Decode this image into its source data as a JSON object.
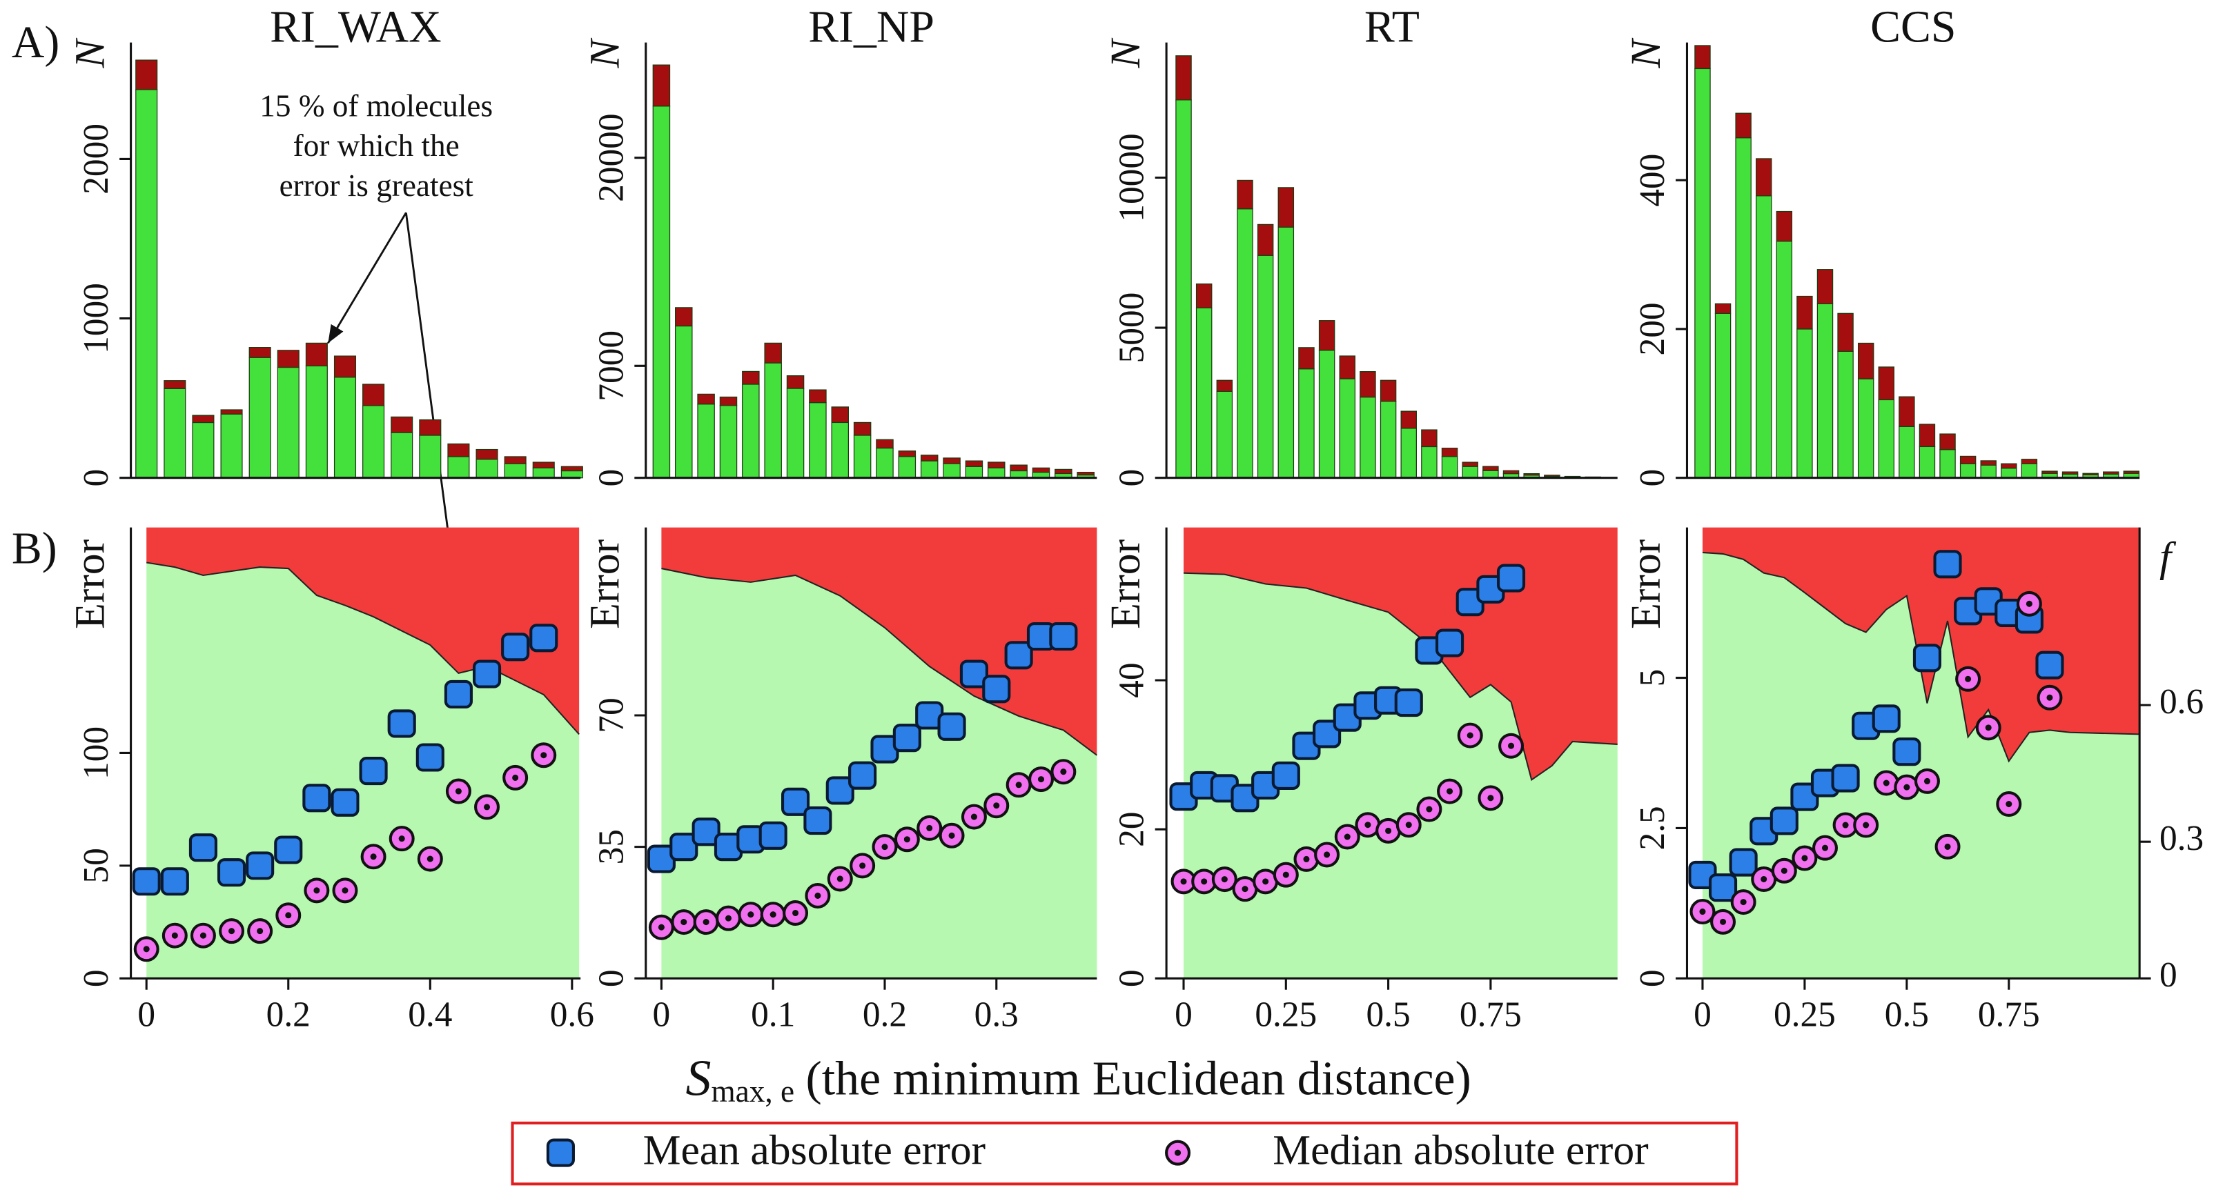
{
  "panel_labels": [
    "A)",
    "B)"
  ],
  "xlabel": {
    "symbol": "S",
    "subscript": "max, e",
    "text": "(the minimum Euclidean distance)"
  },
  "series_style": [
    {
      "name": "Mean absolute error",
      "color": "#2b7fe6",
      "marker": "square"
    },
    {
      "name": "Median absolute error",
      "color": "#f070f0",
      "marker": "ring"
    }
  ],
  "legend_border": "#e02020",
  "chart_data": [
    {
      "type": "histogram",
      "title": "RI_WAX",
      "ylabel": "N",
      "annotation": [
        "15 % of molecules",
        "for which the",
        "error is greatest"
      ],
      "x": [
        0,
        0.04,
        0.08,
        0.12,
        0.16,
        0.2,
        0.24,
        0.28,
        0.32,
        0.36,
        0.4,
        0.44,
        0.48,
        0.52,
        0.56,
        0.6
      ],
      "series": [
        {
          "color": "#44e03c",
          "values": [
            2435,
            560,
            347,
            400,
            755,
            693,
            702,
            631,
            453,
            284,
            267,
            133,
            116,
            89,
            62,
            44
          ]
        },
        {
          "color": "#a50e0e",
          "values": [
            185,
            50,
            45,
            27,
            63,
            107,
            143,
            133,
            134,
            98,
            97,
            80,
            62,
            44,
            36,
            27
          ]
        }
      ],
      "xlim": [
        -0.022,
        0.612
      ],
      "ylim": [
        0,
        2730
      ],
      "yticks": [
        0,
        1000,
        2000
      ]
    },
    {
      "type": "histogram",
      "title": "RI_NP",
      "ylabel": "N",
      "x": [
        0,
        0.02,
        0.04,
        0.06,
        0.08,
        0.1,
        0.12,
        0.14,
        0.16,
        0.18,
        0.2,
        0.22,
        0.24,
        0.26,
        0.28,
        0.3,
        0.32,
        0.34,
        0.36,
        0.38
      ],
      "series": [
        {
          "color": "#44e03c",
          "values": [
            23230,
            9490,
            4610,
            4520,
            5850,
            7180,
            5590,
            4700,
            3460,
            2660,
            1860,
            1330,
            1060,
            890,
            710,
            620,
            440,
            350,
            270,
            180
          ]
        },
        {
          "color": "#a50e0e",
          "values": [
            2570,
            1150,
            620,
            530,
            800,
            1240,
            790,
            800,
            970,
            800,
            530,
            350,
            360,
            350,
            350,
            360,
            360,
            270,
            260,
            170
          ]
        }
      ],
      "xlim": [
        -0.014,
        0.39
      ],
      "ylim": [
        0,
        27200
      ],
      "yticks": [
        0,
        7000,
        20000
      ]
    },
    {
      "type": "histogram",
      "title": "RT",
      "ylabel": "N",
      "x": [
        0,
        0.05,
        0.1,
        0.15,
        0.2,
        0.25,
        0.3,
        0.35,
        0.4,
        0.45,
        0.5,
        0.55,
        0.6,
        0.65,
        0.7,
        0.75,
        0.8,
        0.85,
        0.9,
        0.95,
        1.0
      ],
      "series": [
        {
          "color": "#44e03c",
          "values": [
            12590,
            5660,
            2880,
            8960,
            7410,
            8350,
            3630,
            4250,
            3300,
            2690,
            2550,
            1650,
            1040,
            710,
            380,
            240,
            140,
            90,
            50,
            30,
            20
          ]
        },
        {
          "color": "#a50e0e",
          "values": [
            1470,
            800,
            370,
            950,
            1030,
            1320,
            710,
            990,
            760,
            850,
            700,
            570,
            560,
            280,
            140,
            140,
            100,
            50,
            40,
            20,
            10
          ]
        }
      ],
      "xlim": [
        -0.042,
        1.06
      ],
      "ylim": [
        0,
        14500
      ],
      "yticks": [
        0,
        5000,
        10000
      ]
    },
    {
      "type": "histogram",
      "title": "CCS",
      "ylabel": "N",
      "x": [
        0,
        0.05,
        0.1,
        0.15,
        0.2,
        0.25,
        0.3,
        0.35,
        0.4,
        0.45,
        0.5,
        0.55,
        0.6,
        0.65,
        0.7,
        0.75,
        0.8,
        0.85,
        0.9,
        0.95,
        1.0,
        1.05
      ],
      "series": [
        {
          "color": "#44e03c",
          "values": [
            550,
            221,
            457,
            379,
            318,
            200,
            234,
            170,
            133,
            105,
            69,
            42,
            38,
            19,
            17,
            13,
            19,
            6,
            5,
            4,
            5,
            6
          ]
        },
        {
          "color": "#a50e0e",
          "values": [
            31,
            13,
            33,
            50,
            40,
            44,
            46,
            51,
            48,
            44,
            40,
            30,
            21,
            10,
            6,
            6,
            6,
            3,
            3,
            2,
            3,
            3
          ]
        }
      ],
      "xlim": [
        -0.038,
        1.07
      ],
      "ylim": [
        0,
        585
      ],
      "yticks": [
        0,
        200,
        400
      ]
    },
    {
      "type": "scatter",
      "ylabel": "Error",
      "x": [
        0,
        0.04,
        0.08,
        0.12,
        0.16,
        0.2,
        0.24,
        0.28,
        0.32,
        0.36,
        0.4,
        0.44,
        0.48,
        0.52,
        0.56
      ],
      "series": [
        {
          "values": [
            43,
            43,
            58,
            47,
            50,
            57,
            80,
            78,
            92,
            113,
            98,
            126,
            135,
            147,
            151
          ]
        },
        {
          "values": [
            13,
            19,
            19,
            21,
            21,
            28,
            39,
            39,
            54,
            62,
            53,
            83,
            76,
            89,
            99
          ]
        }
      ],
      "area": {
        "x": [
          0,
          0.04,
          0.08,
          0.12,
          0.16,
          0.2,
          0.24,
          0.28,
          0.32,
          0.36,
          0.4,
          0.44,
          0.48,
          0.52,
          0.56,
          0.61
        ],
        "values": [
          0.913,
          0.903,
          0.885,
          0.894,
          0.903,
          0.9,
          0.841,
          0.819,
          0.794,
          0.763,
          0.732,
          0.67,
          0.685,
          0.654,
          0.623,
          0.536
        ],
        "axis": "y2",
        "fill_below": "#b6f8b0",
        "fill_above": "#f23c3c"
      },
      "xlim": [
        -0.022,
        0.612
      ],
      "xticks": [
        0,
        0.2,
        0.4,
        0.6
      ],
      "ylim": [
        0,
        200
      ],
      "yticks": [
        0,
        50,
        100
      ],
      "y2lim": [
        0,
        0.99
      ]
    },
    {
      "type": "scatter",
      "ylabel": "Error",
      "x": [
        0,
        0.02,
        0.04,
        0.06,
        0.08,
        0.1,
        0.12,
        0.14,
        0.16,
        0.18,
        0.2,
        0.22,
        0.24,
        0.26,
        0.28,
        0.3,
        0.32,
        0.34,
        0.36
      ],
      "series": [
        {
          "values": [
            31.8,
            35,
            39,
            35,
            37,
            38,
            47,
            42,
            50,
            54,
            61,
            64,
            70,
            67,
            81,
            77,
            86,
            91,
            91
          ]
        },
        {
          "values": [
            13.6,
            15,
            15,
            16,
            17,
            17,
            17.4,
            22,
            26.5,
            30,
            35,
            37,
            40,
            38,
            43,
            46,
            51.5,
            53,
            55
          ]
        }
      ],
      "area": {
        "x": [
          0,
          0.04,
          0.08,
          0.12,
          0.16,
          0.2,
          0.24,
          0.28,
          0.32,
          0.36,
          0.39
        ],
        "values": [
          0.9,
          0.88,
          0.87,
          0.885,
          0.84,
          0.77,
          0.685,
          0.62,
          0.576,
          0.545,
          0.49
        ],
        "axis": "y2",
        "fill_below": "#b6f8b0",
        "fill_above": "#f23c3c"
      },
      "xlim": [
        -0.014,
        0.39
      ],
      "xticks": [
        0,
        0.1,
        0.2,
        0.3
      ],
      "ylim": [
        0,
        120
      ],
      "yticks": [
        0,
        35,
        70
      ],
      "y2lim": [
        0,
        0.99
      ]
    },
    {
      "type": "scatter",
      "ylabel": "Error",
      "x": [
        0,
        0.05,
        0.1,
        0.15,
        0.2,
        0.25,
        0.3,
        0.35,
        0.4,
        0.45,
        0.5,
        0.55,
        0.6,
        0.65,
        0.7,
        0.75,
        0.8
      ],
      "series": [
        {
          "values": [
            24.4,
            25.9,
            25.5,
            24.2,
            25.9,
            27.2,
            31.2,
            32.8,
            35,
            36.6,
            37.3,
            37,
            44,
            45,
            50.5,
            52.2,
            53.7
          ]
        },
        {
          "values": [
            13,
            13,
            13.3,
            12,
            13,
            13.9,
            16,
            16.6,
            19,
            20.6,
            19.8,
            20.6,
            22.7,
            25.1,
            32.6,
            24.2,
            31.2
          ]
        }
      ],
      "area": {
        "x": [
          0,
          0.1,
          0.2,
          0.3,
          0.4,
          0.5,
          0.6,
          0.7,
          0.75,
          0.8,
          0.85,
          0.9,
          0.95,
          1.06
        ],
        "values": [
          0.89,
          0.887,
          0.866,
          0.857,
          0.83,
          0.804,
          0.732,
          0.617,
          0.645,
          0.607,
          0.436,
          0.467,
          0.52,
          0.514
        ],
        "axis": "y2",
        "fill_below": "#b6f8b0",
        "fill_above": "#f23c3c"
      },
      "xlim": [
        -0.042,
        1.06
      ],
      "xticks": [
        0,
        0.25,
        0.5,
        0.75
      ],
      "ylim": [
        0,
        60.5
      ],
      "yticks": [
        0,
        20,
        40
      ],
      "y2lim": [
        0,
        0.99
      ]
    },
    {
      "type": "scatter",
      "ylabel": "Error",
      "y2label": "f",
      "x": [
        0,
        0.05,
        0.1,
        0.15,
        0.2,
        0.25,
        0.3,
        0.35,
        0.4,
        0.45,
        0.5,
        0.55,
        0.6,
        0.65,
        0.7,
        0.75,
        0.8,
        0.85
      ],
      "series": [
        {
          "values": [
            1.72,
            1.51,
            1.93,
            2.45,
            2.62,
            3.02,
            3.25,
            3.33,
            4.2,
            4.32,
            3.77,
            5.33,
            6.89,
            6.11,
            6.27,
            6.08,
            5.97,
            5.21
          ]
        },
        {
          "values": [
            1.11,
            0.94,
            1.27,
            1.65,
            1.79,
            2.0,
            2.17,
            2.55,
            2.55,
            3.25,
            3.18,
            3.28,
            2.19,
            4.98,
            4.17,
            2.9,
            6.23,
            4.67
          ]
        }
      ],
      "area": {
        "x": [
          0,
          0.05,
          0.1,
          0.15,
          0.2,
          0.25,
          0.3,
          0.35,
          0.4,
          0.45,
          0.5,
          0.55,
          0.6,
          0.65,
          0.7,
          0.75,
          0.8,
          0.85,
          0.9,
          1.07
        ],
        "values": [
          0.935,
          0.932,
          0.92,
          0.89,
          0.88,
          0.847,
          0.813,
          0.779,
          0.76,
          0.81,
          0.84,
          0.604,
          0.785,
          0.53,
          0.59,
          0.477,
          0.54,
          0.545,
          0.54,
          0.536
        ],
        "axis": "y2",
        "fill_below": "#b6f8b0",
        "fill_above": "#f23c3c"
      },
      "xlim": [
        -0.038,
        1.07
      ],
      "xticks": [
        0,
        0.25,
        0.5,
        0.75
      ],
      "ylim": [
        0,
        7.5
      ],
      "yticks": [
        0,
        2.5,
        5
      ],
      "y2lim": [
        0,
        0.99
      ],
      "y2ticks": [
        0,
        0.3,
        0.6
      ]
    }
  ]
}
